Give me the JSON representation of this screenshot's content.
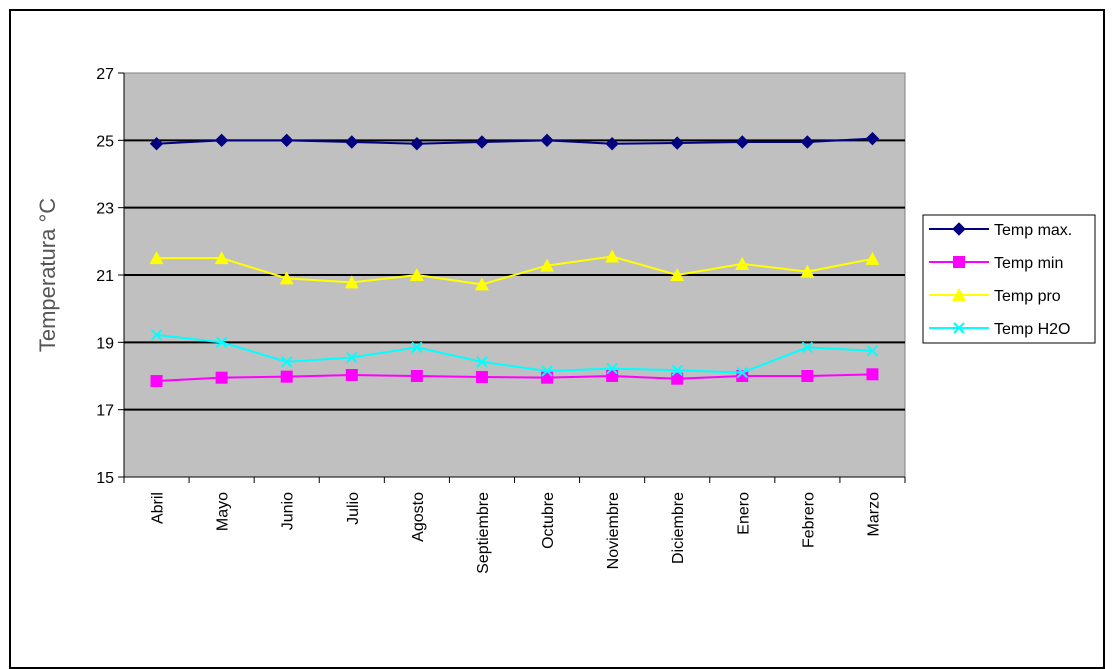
{
  "chart_data": {
    "type": "line",
    "title": "",
    "xlabel": "",
    "ylabel": "Temperatura °C",
    "ylim": [
      15,
      27
    ],
    "yticks": [
      15,
      17,
      19,
      21,
      23,
      25,
      27
    ],
    "grid": true,
    "legend_position": "right",
    "plot_background": "#c0c0c0",
    "categories": [
      "Abril",
      "Mayo",
      "Junio",
      "Julio",
      "Agosto",
      "Septiembre",
      "Octubre",
      "Noviembre",
      "Diciembre",
      "Enero",
      "Febrero",
      "Marzo"
    ],
    "series": [
      {
        "name": "Temp max.",
        "color": "#000080",
        "marker": "diamond",
        "values": [
          24.9,
          25.0,
          25.0,
          24.95,
          24.9,
          24.95,
          25.0,
          24.9,
          24.92,
          24.95,
          24.95,
          25.05
        ]
      },
      {
        "name": "Temp min",
        "color": "#ff00ff",
        "marker": "square",
        "values": [
          17.85,
          17.95,
          17.98,
          18.03,
          18.0,
          17.97,
          17.95,
          18.0,
          17.92,
          18.0,
          18.0,
          18.05
        ]
      },
      {
        "name": "Temp pro",
        "color": "#ffff00",
        "marker": "triangle",
        "values": [
          21.5,
          21.5,
          20.9,
          20.78,
          21.0,
          20.72,
          21.28,
          21.55,
          21.0,
          21.33,
          21.1,
          21.48
        ]
      },
      {
        "name": "Temp H2O",
        "color": "#00ffff",
        "marker": "x",
        "values": [
          19.22,
          19.0,
          18.42,
          18.55,
          18.85,
          18.42,
          18.15,
          18.22,
          18.17,
          18.1,
          18.85,
          18.75
        ]
      }
    ]
  }
}
